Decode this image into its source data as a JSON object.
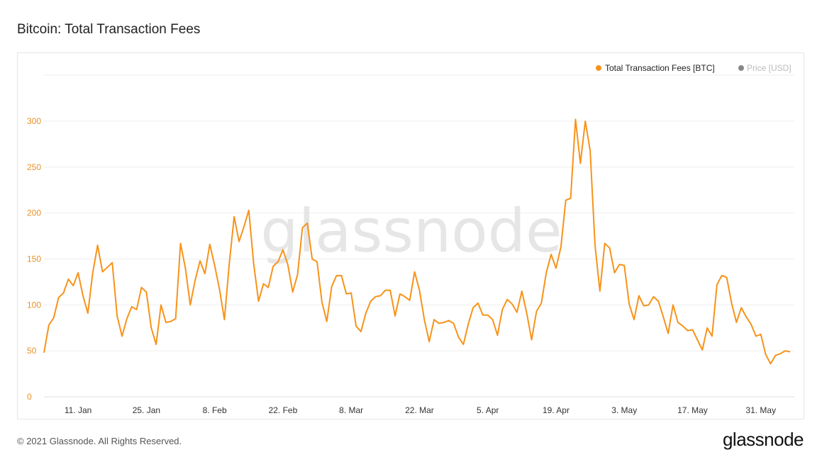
{
  "page": {
    "title": "Bitcoin: Total Transaction Fees",
    "copyright": "© 2021 Glassnode. All Rights Reserved.",
    "logo": "glassnode",
    "watermark": "glassnode"
  },
  "colors": {
    "series": "#F7931A",
    "price": "#888888",
    "ytick": "#E8912A",
    "grid": "#EEEEEE"
  },
  "chart_data": {
    "type": "line",
    "title": "Bitcoin: Total Transaction Fees",
    "xlabel": "",
    "ylabel": "",
    "ylim": [
      0,
      300
    ],
    "yticks": [
      "0",
      "50",
      "100",
      "150",
      "200",
      "250",
      "300"
    ],
    "xticks": [
      "11. Jan",
      "25. Jan",
      "8. Feb",
      "22. Feb",
      "8. Mar",
      "22. Mar",
      "5. Apr",
      "19. Apr",
      "3. May",
      "17. May",
      "31. May"
    ],
    "x_start": "2021-01-04",
    "legend": {
      "placement": "top-right",
      "items": [
        {
          "label": "Total Transaction Fees [BTC]",
          "color": "#F7931A",
          "active": true
        },
        {
          "label": "Price [USD]",
          "color": "#888888",
          "active": false
        }
      ]
    },
    "grid": true,
    "series": [
      {
        "name": "Total Transaction Fees [BTC]",
        "values": [
          48,
          78,
          86,
          108,
          113,
          128,
          121,
          135,
          110,
          91,
          135,
          165,
          136,
          141,
          146,
          88,
          66,
          85,
          98,
          95,
          119,
          114,
          75,
          57,
          100,
          81,
          82,
          85,
          167,
          140,
          100,
          127,
          148,
          134,
          166,
          143,
          117,
          84,
          145,
          196,
          169,
          185,
          203,
          145,
          104,
          123,
          119,
          142,
          147,
          160,
          144,
          114,
          133,
          184,
          189,
          150,
          147,
          103,
          82,
          120,
          132,
          132,
          112,
          113,
          77,
          71,
          91,
          104,
          109,
          110,
          116,
          116,
          88,
          112,
          109,
          105,
          136,
          116,
          84,
          60,
          84,
          80,
          81,
          83,
          80,
          65,
          57,
          79,
          97,
          102,
          89,
          89,
          84,
          67,
          95,
          106,
          101,
          92,
          115,
          91,
          62,
          93,
          102,
          135,
          155,
          140,
          163,
          214,
          216,
          302,
          254,
          300,
          268,
          165,
          115,
          167,
          162,
          135,
          144,
          143,
          101,
          84,
          110,
          99,
          100,
          109,
          104,
          87,
          69,
          100,
          81,
          77,
          72,
          73,
          62,
          51,
          75,
          66,
          122,
          132,
          130,
          102,
          81,
          97,
          87,
          79,
          66,
          68,
          46,
          36,
          45,
          47,
          50,
          49
        ]
      }
    ]
  }
}
